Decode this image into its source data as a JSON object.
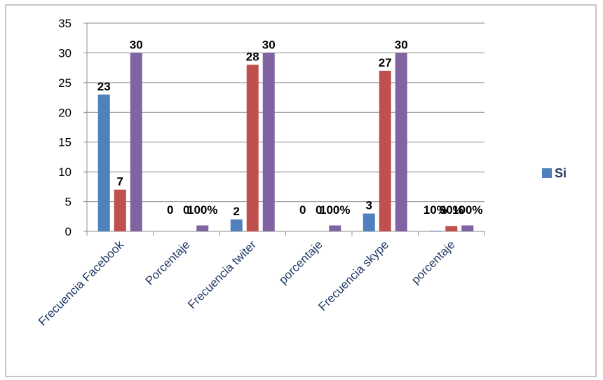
{
  "chart_data": {
    "type": "bar",
    "categories": [
      "Frecuencia Facebook",
      "Porcentaje",
      "Frecuencia twiter",
      "porcentaje",
      "Frecuencia skype",
      "porcentaje"
    ],
    "series": [
      {
        "name": "Si",
        "color": "#4f81bd",
        "values": [
          23,
          0,
          2,
          0,
          3,
          0.1
        ],
        "labels": [
          "23",
          "0",
          "2",
          "0",
          "3",
          "10%"
        ]
      },
      {
        "color": "#c0504d",
        "values": [
          7,
          0,
          28,
          0,
          27,
          0.9
        ],
        "labels": [
          "7",
          "0",
          "28",
          "0",
          "27",
          "90%"
        ]
      },
      {
        "color": "#8064a2",
        "values": [
          30,
          1,
          30,
          1,
          30,
          1
        ],
        "labels": [
          "30",
          "100%",
          "30",
          "100%",
          "30",
          "100%"
        ]
      }
    ],
    "yticks": [
      "0",
      "5",
      "10",
      "15",
      "20",
      "25",
      "30",
      "35"
    ],
    "ylim": [
      0,
      35
    ],
    "grid": true,
    "legend": {
      "position": "right",
      "entries": [
        "Si"
      ]
    }
  }
}
